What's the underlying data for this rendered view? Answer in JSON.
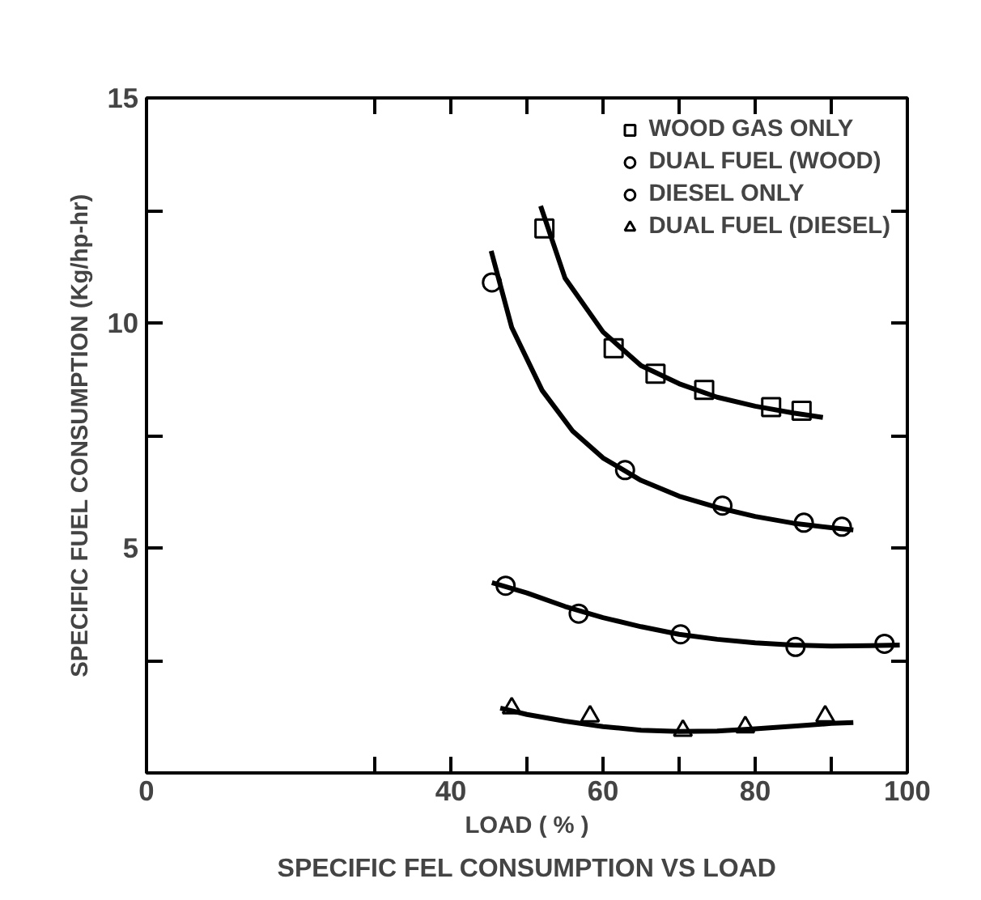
{
  "chart_data": {
    "type": "scatter",
    "title": "SPECIFIC FEL CONSUMPTION VS LOAD",
    "xlabel": "LOAD ( % )",
    "ylabel": "SPECIFIC FUEL CONSUMPTION (Kg/hp-hr)",
    "xlim": [
      0,
      100
    ],
    "ylim": [
      0,
      15
    ],
    "xticks": [
      0,
      {
        "value": 30,
        "label": null
      },
      40,
      {
        "value": 50,
        "label": null
      },
      60,
      {
        "value": 70,
        "label": null
      },
      80,
      {
        "value": 90,
        "label": null
      },
      100
    ],
    "yticks": [
      {
        "value": 2.5,
        "label": null
      },
      5,
      {
        "value": 7.5,
        "label": null
      },
      10,
      {
        "value": 12.5,
        "label": null
      },
      15
    ],
    "legend": "top right",
    "series": [
      {
        "name": "WOOD GAS ONLY",
        "marker": "square",
        "color": "#000000",
        "x": [
          52.3,
          61.4,
          66.9,
          73.3,
          82.1,
          86.1
        ],
        "values": [
          12.1,
          9.44,
          8.87,
          8.51,
          8.13,
          8.05
        ]
      },
      {
        "name": "DUAL FUEL (WOOD)",
        "marker": "circle",
        "color": "#000000",
        "x": [
          45.4,
          62.9,
          75.7,
          86.4,
          91.4
        ],
        "values": [
          10.9,
          6.73,
          5.94,
          5.56,
          5.47
        ]
      },
      {
        "name": "DIESEL ONLY",
        "marker": "circle",
        "color": "#000000",
        "x": [
          47.2,
          56.8,
          70.2,
          85.3,
          97.0
        ],
        "values": [
          4.16,
          3.54,
          3.08,
          2.8,
          2.87
        ]
      },
      {
        "name": "DUAL FUEL (DIESEL)",
        "marker": "triangle",
        "color": "#000000",
        "x": [
          48.0,
          58.3,
          70.5,
          78.7,
          89.2
        ],
        "values": [
          1.44,
          1.26,
          0.94,
          1.02,
          1.26
        ]
      },
      {
        "type": "line",
        "color": "#000000",
        "x": [
          51.8,
          55,
          60,
          65,
          70,
          75,
          80,
          85,
          88.9
        ],
        "values": [
          12.6,
          11.0,
          9.8,
          9.05,
          8.65,
          8.35,
          8.15,
          8.0,
          7.9
        ]
      },
      {
        "type": "line",
        "color": "#000000",
        "x": [
          45.3,
          48,
          52,
          56,
          60,
          65,
          70,
          75,
          80,
          85,
          90,
          92.9
        ],
        "values": [
          11.6,
          9.9,
          8.5,
          7.6,
          7.0,
          6.5,
          6.15,
          5.9,
          5.7,
          5.55,
          5.45,
          5.4
        ]
      },
      {
        "type": "line",
        "color": "#000000",
        "x": [
          45.4,
          50,
          55,
          60,
          65,
          70,
          75,
          80,
          85,
          90,
          95,
          99
        ],
        "values": [
          4.23,
          4.0,
          3.7,
          3.45,
          3.25,
          3.08,
          2.97,
          2.89,
          2.84,
          2.82,
          2.83,
          2.84
        ]
      },
      {
        "type": "line",
        "color": "#000000",
        "x": [
          46.5,
          50,
          55,
          60,
          65,
          70,
          75,
          80,
          85,
          90,
          92.9
        ],
        "values": [
          1.44,
          1.3,
          1.15,
          1.03,
          0.95,
          0.92,
          0.93,
          0.98,
          1.04,
          1.1,
          1.12
        ]
      }
    ]
  }
}
